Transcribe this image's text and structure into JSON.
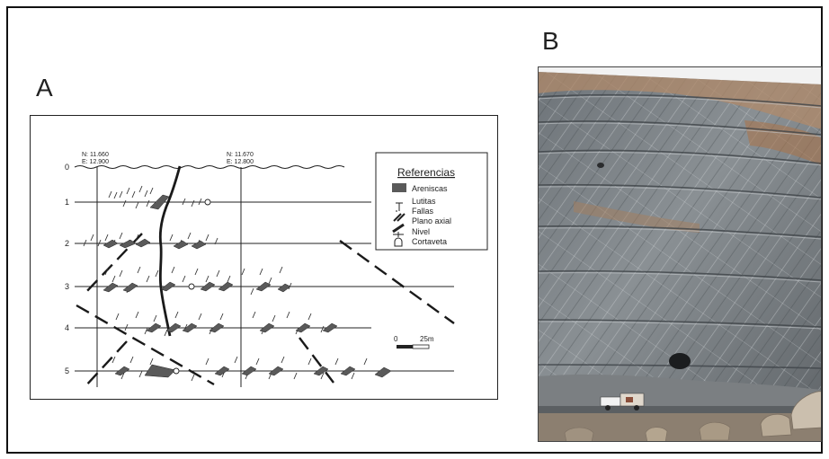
{
  "panels": {
    "a_label": "A",
    "b_label": "B"
  },
  "section": {
    "coord_left_n": "N: 11.660",
    "coord_left_e": "E: 12.900",
    "coord_right_n": "N: 11.670",
    "coord_right_e": "E: 12.800",
    "levels": [
      "0",
      "1",
      "2",
      "3",
      "4",
      "5"
    ],
    "scale_start": "0",
    "scale_end": "25m"
  },
  "legend": {
    "title": "Referencias",
    "items": [
      "Areniscas",
      "Lutitas",
      "Fallas",
      "Plano axial",
      "Nivel",
      "Cortaveta"
    ]
  },
  "colors": {
    "sandstone": "#5a5a5a",
    "ink": "#1a1a1a"
  }
}
